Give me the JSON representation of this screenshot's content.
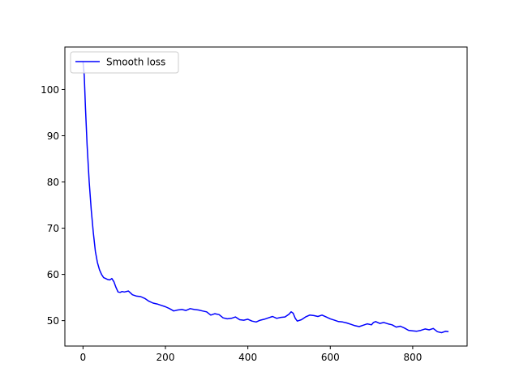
{
  "chart_data": {
    "type": "line",
    "title": "",
    "xlabel": "",
    "ylabel": "",
    "xlim": [
      -44,
      932
    ],
    "ylim": [
      44.5,
      109.2
    ],
    "xticks": [
      0,
      200,
      400,
      600,
      800
    ],
    "yticks": [
      50,
      60,
      70,
      80,
      90,
      100
    ],
    "grid": false,
    "legend_position": "top-left",
    "series": [
      {
        "name": "Smooth loss",
        "color": "#0000ff",
        "x": [
          0,
          3,
          6,
          10,
          15,
          20,
          25,
          30,
          35,
          40,
          45,
          50,
          55,
          60,
          65,
          70,
          75,
          80,
          85,
          90,
          95,
          100,
          110,
          120,
          130,
          140,
          150,
          160,
          170,
          180,
          190,
          200,
          210,
          220,
          230,
          240,
          250,
          260,
          270,
          280,
          290,
          300,
          310,
          320,
          330,
          340,
          350,
          360,
          370,
          380,
          390,
          400,
          410,
          420,
          430,
          440,
          450,
          460,
          470,
          480,
          490,
          500,
          505,
          510,
          515,
          520,
          530,
          540,
          550,
          560,
          570,
          580,
          590,
          600,
          610,
          620,
          630,
          640,
          650,
          660,
          670,
          680,
          690,
          700,
          705,
          710,
          720,
          730,
          740,
          750,
          760,
          770,
          780,
          790,
          800,
          810,
          820,
          830,
          840,
          850,
          860,
          870,
          880,
          887
        ],
        "y": [
          106,
          103,
          96,
          88,
          80,
          74,
          69,
          65,
          62.6,
          61,
          60,
          59.3,
          59.1,
          58.9,
          58.8,
          59.1,
          58.4,
          57.2,
          56.2,
          56.1,
          56.3,
          56.2,
          56.4,
          55.6,
          55.3,
          55.2,
          54.8,
          54.2,
          53.8,
          53.6,
          53.3,
          53,
          52.6,
          52.1,
          52.3,
          52.4,
          52.2,
          52.6,
          52.4,
          52.3,
          52.1,
          51.9,
          51.2,
          51.5,
          51.3,
          50.6,
          50.4,
          50.5,
          50.8,
          50.2,
          50.1,
          50.3,
          49.9,
          49.7,
          50.1,
          50.3,
          50.6,
          50.9,
          50.5,
          50.7,
          50.8,
          51.4,
          51.9,
          51.6,
          50.5,
          49.9,
          50.2,
          50.8,
          51.2,
          51.1,
          50.9,
          51.2,
          50.8,
          50.4,
          50.1,
          49.8,
          49.7,
          49.5,
          49.2,
          48.9,
          48.7,
          49.0,
          49.3,
          49.1,
          49.6,
          49.8,
          49.4,
          49.6,
          49.3,
          49.1,
          48.6,
          48.8,
          48.4,
          47.9,
          47.8,
          47.7,
          47.9,
          48.2,
          48.0,
          48.3,
          47.6,
          47.4,
          47.7,
          47.6
        ]
      }
    ]
  }
}
